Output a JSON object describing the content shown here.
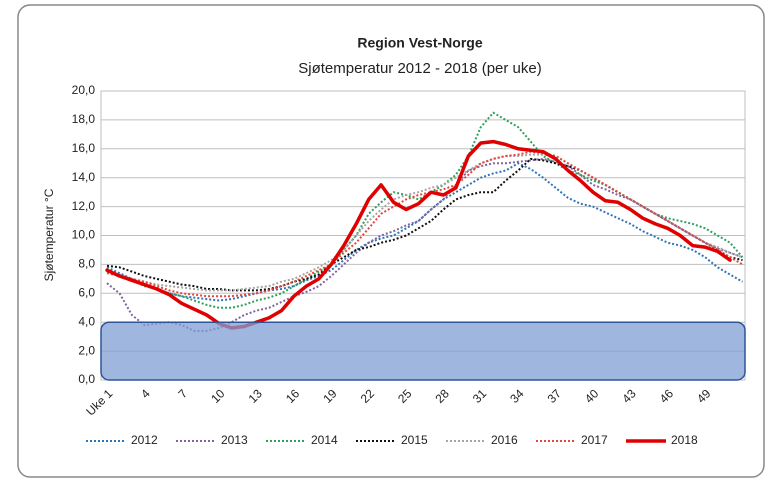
{
  "chart_data": {
    "type": "line",
    "title": "Region Vest-Norge",
    "subtitle": "Sjøtemperatur 2012 - 2018 (per uke)",
    "y_label": "Sjøtemperatur °C",
    "categories": [
      "Uke 1",
      null,
      null,
      "4",
      null,
      null,
      "7",
      null,
      null,
      "10",
      null,
      null,
      "13",
      null,
      null,
      "16",
      null,
      null,
      "19",
      null,
      null,
      "22",
      null,
      null,
      "25",
      null,
      null,
      "28",
      null,
      null,
      "31",
      null,
      null,
      "34",
      null,
      null,
      "37",
      null,
      null,
      "40",
      null,
      null,
      "43",
      null,
      null,
      "46",
      null,
      null,
      "49",
      null,
      null,
      null
    ],
    "ylim": [
      0,
      20
    ],
    "yticks": [
      {
        "value": 0,
        "label": "0,0"
      },
      {
        "value": 2,
        "label": "2,0"
      },
      {
        "value": 4,
        "label": "4,0"
      },
      {
        "value": 6,
        "label": "6,0"
      },
      {
        "value": 8,
        "label": "8,0"
      },
      {
        "value": 10,
        "label": "10,0"
      },
      {
        "value": 12,
        "label": "12,0"
      },
      {
        "value": 14,
        "label": "14,0"
      },
      {
        "value": 16,
        "label": "16,0"
      },
      {
        "value": 18,
        "label": "18,0"
      },
      {
        "value": 20,
        "label": "20,0"
      }
    ],
    "grid": true,
    "legend": "bottom",
    "shaded_band": {
      "ylim": [
        0,
        4
      ],
      "color": "#7f9fd4"
    },
    "series": [
      {
        "name": "2012",
        "color": "#2e75b6",
        "dashed": true,
        "values": [
          7.8,
          7.4,
          7.0,
          6.6,
          6.3,
          6.0,
          5.8,
          5.7,
          5.6,
          5.5,
          5.6,
          5.8,
          6.0,
          6.2,
          6.3,
          6.5,
          6.9,
          7.2,
          7.6,
          8.3,
          9.0,
          9.5,
          9.8,
          10.0,
          10.5,
          11.0,
          11.8,
          12.5,
          13.0,
          13.5,
          14.0,
          14.3,
          14.5,
          15.0,
          14.6,
          14.0,
          13.3,
          12.6,
          12.2,
          12.0,
          11.6,
          11.2,
          10.8,
          10.3,
          9.9,
          9.5,
          9.3,
          9.0,
          8.5,
          7.8,
          7.3,
          6.8
        ]
      },
      {
        "name": "2013",
        "color": "#8064a2",
        "dashed": true,
        "values": [
          6.7,
          6.0,
          4.5,
          3.8,
          3.9,
          4.0,
          3.8,
          3.4,
          3.4,
          3.6,
          4.0,
          4.5,
          4.8,
          5.0,
          5.4,
          5.8,
          6.1,
          6.5,
          7.2,
          8.0,
          8.8,
          9.5,
          10.0,
          10.3,
          10.7,
          11.0,
          11.8,
          12.5,
          13.5,
          14.5,
          14.8,
          15.0,
          15.0,
          15.1,
          15.2,
          15.3,
          15.1,
          14.8,
          14.2,
          13.5,
          13.2,
          12.8,
          12.5,
          12.0,
          11.5,
          11.0,
          10.5,
          10.0,
          9.5,
          9.1,
          8.8,
          8.5
        ]
      },
      {
        "name": "2014",
        "color": "#2ea05a",
        "dashed": true,
        "values": [
          7.5,
          7.2,
          6.9,
          6.5,
          6.3,
          6.0,
          5.8,
          5.5,
          5.2,
          5.0,
          5.0,
          5.2,
          5.5,
          5.7,
          6.0,
          6.5,
          7.0,
          7.5,
          8.0,
          9.0,
          10.0,
          11.5,
          12.3,
          13.0,
          12.8,
          12.5,
          13.0,
          13.5,
          14.2,
          15.5,
          17.5,
          18.5,
          18.0,
          17.5,
          16.5,
          15.5,
          15.0,
          14.5,
          14.2,
          13.8,
          13.5,
          13.0,
          12.5,
          12.0,
          11.5,
          11.2,
          11.0,
          10.8,
          10.5,
          10.0,
          9.5,
          8.5
        ]
      },
      {
        "name": "2015",
        "color": "#111111",
        "dashed": true,
        "values": [
          7.9,
          7.8,
          7.5,
          7.2,
          7.0,
          6.8,
          6.6,
          6.5,
          6.3,
          6.3,
          6.2,
          6.2,
          6.2,
          6.3,
          6.5,
          6.8,
          7.0,
          7.3,
          8.0,
          8.5,
          9.0,
          9.2,
          9.5,
          9.7,
          10.0,
          10.5,
          11.0,
          11.8,
          12.5,
          12.8,
          13.0,
          13.0,
          13.8,
          14.5,
          15.3,
          15.2,
          15.0,
          14.8,
          14.5,
          14.0,
          13.5,
          13.0,
          12.5,
          12.0,
          11.5,
          11.0,
          10.5,
          10.0,
          9.5,
          9.0,
          8.5,
          8.3
        ]
      },
      {
        "name": "2016",
        "color": "#a6a6a6",
        "dashed": true,
        "values": [
          7.5,
          7.3,
          7.0,
          6.8,
          6.6,
          6.5,
          6.4,
          6.3,
          6.2,
          6.2,
          6.2,
          6.3,
          6.4,
          6.5,
          6.8,
          7.0,
          7.4,
          7.8,
          8.3,
          9.0,
          10.0,
          11.0,
          11.8,
          12.5,
          12.8,
          13.0,
          13.3,
          13.5,
          14.0,
          14.5,
          15.0,
          15.3,
          15.5,
          15.5,
          15.6,
          15.6,
          15.5,
          15.0,
          14.5,
          14.0,
          13.5,
          13.0,
          12.5,
          12.0,
          11.5,
          11.0,
          10.5,
          10.0,
          9.5,
          9.2,
          8.8,
          8.5
        ]
      },
      {
        "name": "2017",
        "color": "#e8453c",
        "dashed": true,
        "values": [
          7.4,
          7.2,
          7.0,
          6.8,
          6.5,
          6.2,
          6.0,
          5.9,
          5.8,
          5.8,
          5.8,
          5.9,
          6.0,
          6.2,
          6.5,
          6.8,
          7.2,
          7.6,
          8.0,
          8.8,
          9.5,
          10.5,
          11.5,
          12.0,
          12.5,
          12.8,
          13.0,
          13.2,
          13.5,
          14.2,
          15.0,
          15.3,
          15.5,
          15.6,
          15.8,
          15.7,
          15.5,
          15.0,
          14.5,
          14.0,
          13.5,
          13.0,
          12.5,
          12.0,
          11.5,
          11.0,
          10.5,
          10.0,
          9.5,
          9.0,
          8.5,
          8.0
        ]
      },
      {
        "name": "2018",
        "color": "#e00000",
        "dashed": false,
        "values": [
          7.6,
          7.2,
          6.9,
          6.6,
          6.3,
          5.9,
          5.3,
          4.9,
          4.5,
          3.9,
          3.6,
          3.7,
          4.0,
          4.3,
          4.8,
          5.8,
          6.5,
          7.0,
          8.0,
          9.3,
          10.8,
          12.5,
          13.5,
          12.3,
          11.8,
          12.2,
          13.0,
          12.8,
          13.3,
          15.5,
          16.4,
          16.5,
          16.3,
          16.0,
          15.9,
          15.8,
          15.3,
          14.5,
          13.8,
          13.0,
          12.4,
          12.3,
          11.8,
          11.2,
          10.8,
          10.5,
          10.0,
          9.3,
          9.2,
          8.9,
          8.3,
          null
        ]
      }
    ]
  }
}
